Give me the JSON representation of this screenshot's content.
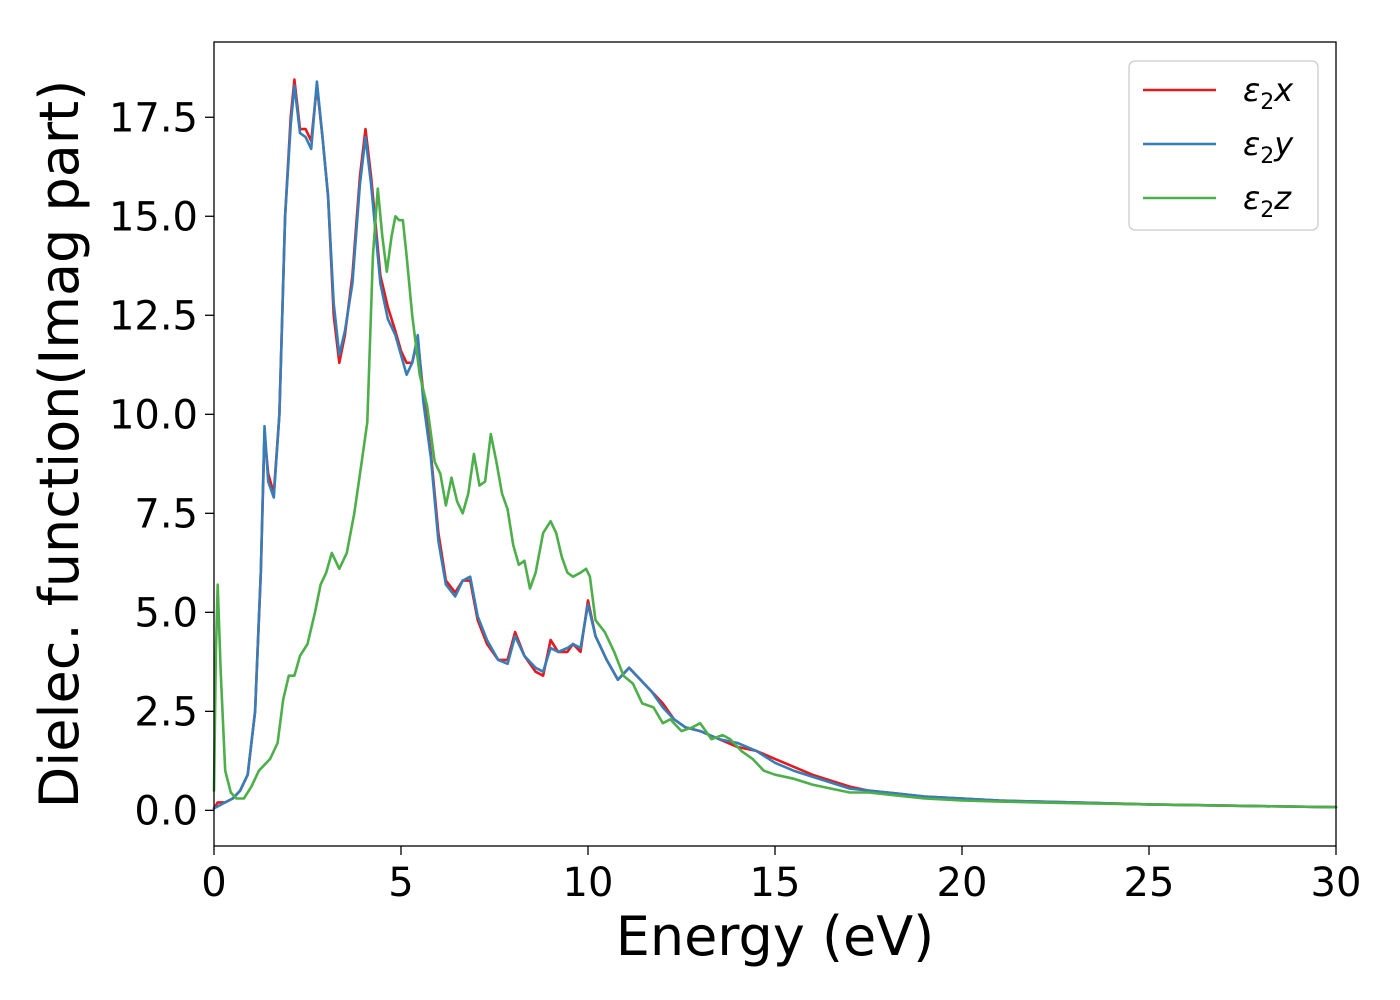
{
  "chart_data": {
    "type": "line",
    "title": "",
    "xlabel": "Energy (eV)",
    "ylabel": "Dielec. function(Imag part)",
    "xlim": [
      0,
      30
    ],
    "ylim": [
      -0.9,
      19.4
    ],
    "grid": false,
    "legend_position": "top-right",
    "xticks": [
      0,
      5,
      10,
      15,
      20,
      25,
      30
    ],
    "xtick_labels": [
      "0",
      "5",
      "10",
      "15",
      "20",
      "25",
      "30"
    ],
    "yticks": [
      0.0,
      2.5,
      5.0,
      7.5,
      10.0,
      12.5,
      15.0,
      17.5
    ],
    "ytick_labels": [
      "0.0",
      "2.5",
      "5.0",
      "7.5",
      "10.0",
      "12.5",
      "15.0",
      "17.5"
    ],
    "series": [
      {
        "name": "ε₂x",
        "legend_base": "ε",
        "legend_sub": "2",
        "legend_var": "x",
        "color": "#e41a1c",
        "points": [
          [
            0,
            0.05
          ],
          [
            0.1,
            0.2
          ],
          [
            0.3,
            0.2
          ],
          [
            0.5,
            0.3
          ],
          [
            0.7,
            0.5
          ],
          [
            0.9,
            0.9
          ],
          [
            1.1,
            2.5
          ],
          [
            1.25,
            6
          ],
          [
            1.35,
            9.5
          ],
          [
            1.45,
            8.5
          ],
          [
            1.6,
            8.0
          ],
          [
            1.75,
            10
          ],
          [
            1.9,
            15
          ],
          [
            2.05,
            17.5
          ],
          [
            2.15,
            18.45
          ],
          [
            2.3,
            17.2
          ],
          [
            2.45,
            17.2
          ],
          [
            2.6,
            16.9
          ],
          [
            2.75,
            18.3
          ],
          [
            2.9,
            17
          ],
          [
            3.05,
            15.5
          ],
          [
            3.2,
            12.5
          ],
          [
            3.35,
            11.3
          ],
          [
            3.5,
            12
          ],
          [
            3.7,
            13.5
          ],
          [
            3.9,
            16
          ],
          [
            4.05,
            17.2
          ],
          [
            4.2,
            16
          ],
          [
            4.45,
            13.5
          ],
          [
            4.65,
            12.7
          ],
          [
            4.85,
            12.1
          ],
          [
            5.0,
            11.6
          ],
          [
            5.15,
            11.3
          ],
          [
            5.3,
            11.3
          ],
          [
            5.45,
            11.9
          ],
          [
            5.6,
            10.5
          ],
          [
            5.8,
            9.0
          ],
          [
            6.0,
            7.0
          ],
          [
            6.2,
            5.8
          ],
          [
            6.45,
            5.5
          ],
          [
            6.65,
            5.8
          ],
          [
            6.85,
            5.8
          ],
          [
            7.05,
            4.8
          ],
          [
            7.3,
            4.2
          ],
          [
            7.6,
            3.8
          ],
          [
            7.85,
            3.8
          ],
          [
            8.05,
            4.5
          ],
          [
            8.3,
            3.9
          ],
          [
            8.6,
            3.5
          ],
          [
            8.8,
            3.4
          ],
          [
            9.0,
            4.3
          ],
          [
            9.2,
            4.0
          ],
          [
            9.45,
            4.0
          ],
          [
            9.6,
            4.2
          ],
          [
            9.8,
            4.0
          ],
          [
            10.0,
            5.3
          ],
          [
            10.2,
            4.4
          ],
          [
            10.5,
            3.8
          ],
          [
            10.8,
            3.3
          ],
          [
            11.1,
            3.6
          ],
          [
            11.4,
            3.3
          ],
          [
            11.7,
            3.0
          ],
          [
            12.0,
            2.7
          ],
          [
            12.3,
            2.3
          ],
          [
            12.6,
            2.1
          ],
          [
            13.0,
            2.0
          ],
          [
            13.5,
            1.8
          ],
          [
            14.0,
            1.6
          ],
          [
            14.5,
            1.5
          ],
          [
            15.0,
            1.3
          ],
          [
            15.5,
            1.1
          ],
          [
            16.0,
            0.9
          ],
          [
            16.5,
            0.75
          ],
          [
            17.0,
            0.6
          ],
          [
            17.5,
            0.5
          ],
          [
            18.0,
            0.45
          ],
          [
            19.0,
            0.35
          ],
          [
            20.0,
            0.3
          ],
          [
            21.0,
            0.25
          ],
          [
            22.0,
            0.22
          ],
          [
            23.0,
            0.2
          ],
          [
            25.0,
            0.15
          ],
          [
            27.0,
            0.12
          ],
          [
            30.0,
            0.08
          ]
        ]
      },
      {
        "name": "ε₂y",
        "legend_base": "ε",
        "legend_sub": "2",
        "legend_var": "y",
        "color": "#377eb8",
        "points": [
          [
            0,
            0.05
          ],
          [
            0.1,
            0.1
          ],
          [
            0.3,
            0.2
          ],
          [
            0.5,
            0.3
          ],
          [
            0.7,
            0.5
          ],
          [
            0.9,
            0.9
          ],
          [
            1.1,
            2.5
          ],
          [
            1.25,
            6
          ],
          [
            1.35,
            9.7
          ],
          [
            1.45,
            8.3
          ],
          [
            1.6,
            7.9
          ],
          [
            1.75,
            10
          ],
          [
            1.9,
            15
          ],
          [
            2.05,
            17.3
          ],
          [
            2.15,
            18.3
          ],
          [
            2.3,
            17.1
          ],
          [
            2.45,
            17.0
          ],
          [
            2.6,
            16.7
          ],
          [
            2.75,
            18.4
          ],
          [
            2.9,
            17
          ],
          [
            3.05,
            15.5
          ],
          [
            3.2,
            12.8
          ],
          [
            3.35,
            11.5
          ],
          [
            3.5,
            12.1
          ],
          [
            3.7,
            13.3
          ],
          [
            3.9,
            15.8
          ],
          [
            4.05,
            17.0
          ],
          [
            4.2,
            15.8
          ],
          [
            4.45,
            13.3
          ],
          [
            4.65,
            12.4
          ],
          [
            4.85,
            12.0
          ],
          [
            5.0,
            11.5
          ],
          [
            5.15,
            11.0
          ],
          [
            5.3,
            11.3
          ],
          [
            5.45,
            12.0
          ],
          [
            5.6,
            10.3
          ],
          [
            5.8,
            8.9
          ],
          [
            6.0,
            6.8
          ],
          [
            6.2,
            5.7
          ],
          [
            6.45,
            5.4
          ],
          [
            6.65,
            5.8
          ],
          [
            6.85,
            5.9
          ],
          [
            7.05,
            4.9
          ],
          [
            7.3,
            4.3
          ],
          [
            7.6,
            3.8
          ],
          [
            7.85,
            3.7
          ],
          [
            8.05,
            4.4
          ],
          [
            8.3,
            3.9
          ],
          [
            8.6,
            3.6
          ],
          [
            8.8,
            3.5
          ],
          [
            9.0,
            4.1
          ],
          [
            9.2,
            4.0
          ],
          [
            9.45,
            4.1
          ],
          [
            9.6,
            4.2
          ],
          [
            9.8,
            4.1
          ],
          [
            10.0,
            5.2
          ],
          [
            10.2,
            4.4
          ],
          [
            10.5,
            3.8
          ],
          [
            10.8,
            3.3
          ],
          [
            11.1,
            3.6
          ],
          [
            11.4,
            3.3
          ],
          [
            11.7,
            3.0
          ],
          [
            12.0,
            2.6
          ],
          [
            12.3,
            2.3
          ],
          [
            12.6,
            2.1
          ],
          [
            13.0,
            2.0
          ],
          [
            13.5,
            1.8
          ],
          [
            14.0,
            1.7
          ],
          [
            14.5,
            1.5
          ],
          [
            15.0,
            1.2
          ],
          [
            15.5,
            1.0
          ],
          [
            16.0,
            0.85
          ],
          [
            16.5,
            0.7
          ],
          [
            17.0,
            0.55
          ],
          [
            17.5,
            0.5
          ],
          [
            18.0,
            0.45
          ],
          [
            19.0,
            0.35
          ],
          [
            20.0,
            0.3
          ],
          [
            21.0,
            0.25
          ],
          [
            22.0,
            0.22
          ],
          [
            23.0,
            0.2
          ],
          [
            25.0,
            0.15
          ],
          [
            27.0,
            0.12
          ],
          [
            30.0,
            0.08
          ]
        ]
      },
      {
        "name": "ε₂z",
        "legend_base": "ε",
        "legend_sub": "2",
        "legend_var": "z",
        "color": "#4daf4a",
        "points": [
          [
            0,
            0.5
          ],
          [
            0.05,
            4.0
          ],
          [
            0.1,
            5.7
          ],
          [
            0.18,
            3.5
          ],
          [
            0.3,
            1.0
          ],
          [
            0.45,
            0.45
          ],
          [
            0.6,
            0.3
          ],
          [
            0.8,
            0.3
          ],
          [
            1.0,
            0.6
          ],
          [
            1.2,
            1.0
          ],
          [
            1.5,
            1.3
          ],
          [
            1.7,
            1.7
          ],
          [
            1.85,
            2.8
          ],
          [
            2.0,
            3.4
          ],
          [
            2.15,
            3.4
          ],
          [
            2.3,
            3.9
          ],
          [
            2.5,
            4.2
          ],
          [
            2.7,
            5.0
          ],
          [
            2.85,
            5.7
          ],
          [
            3.0,
            6.0
          ],
          [
            3.15,
            6.5
          ],
          [
            3.35,
            6.1
          ],
          [
            3.55,
            6.5
          ],
          [
            3.75,
            7.5
          ],
          [
            3.95,
            8.8
          ],
          [
            4.1,
            9.8
          ],
          [
            4.25,
            14.0
          ],
          [
            4.38,
            15.7
          ],
          [
            4.5,
            14.5
          ],
          [
            4.62,
            13.6
          ],
          [
            4.75,
            14.5
          ],
          [
            4.85,
            15.0
          ],
          [
            4.95,
            14.9
          ],
          [
            5.05,
            14.9
          ],
          [
            5.15,
            14.0
          ],
          [
            5.3,
            12.5
          ],
          [
            5.5,
            11.0
          ],
          [
            5.7,
            10.2
          ],
          [
            5.9,
            8.8
          ],
          [
            6.05,
            8.5
          ],
          [
            6.2,
            7.7
          ],
          [
            6.35,
            8.4
          ],
          [
            6.5,
            7.8
          ],
          [
            6.65,
            7.5
          ],
          [
            6.8,
            8.0
          ],
          [
            6.95,
            9.0
          ],
          [
            7.1,
            8.2
          ],
          [
            7.25,
            8.3
          ],
          [
            7.4,
            9.5
          ],
          [
            7.55,
            8.8
          ],
          [
            7.7,
            8.0
          ],
          [
            7.85,
            7.6
          ],
          [
            8.0,
            6.7
          ],
          [
            8.15,
            6.2
          ],
          [
            8.3,
            6.3
          ],
          [
            8.45,
            5.6
          ],
          [
            8.6,
            6.0
          ],
          [
            8.8,
            7.0
          ],
          [
            9.0,
            7.3
          ],
          [
            9.15,
            7.0
          ],
          [
            9.3,
            6.4
          ],
          [
            9.45,
            6.0
          ],
          [
            9.6,
            5.9
          ],
          [
            9.8,
            6.0
          ],
          [
            9.95,
            6.1
          ],
          [
            10.05,
            5.9
          ],
          [
            10.2,
            4.8
          ],
          [
            10.45,
            4.5
          ],
          [
            10.7,
            4.0
          ],
          [
            10.95,
            3.4
          ],
          [
            11.2,
            3.2
          ],
          [
            11.45,
            2.7
          ],
          [
            11.75,
            2.6
          ],
          [
            12.0,
            2.2
          ],
          [
            12.2,
            2.3
          ],
          [
            12.5,
            2.0
          ],
          [
            12.8,
            2.1
          ],
          [
            13.0,
            2.2
          ],
          [
            13.3,
            1.8
          ],
          [
            13.6,
            1.9
          ],
          [
            13.8,
            1.8
          ],
          [
            14.1,
            1.5
          ],
          [
            14.4,
            1.3
          ],
          [
            14.7,
            1.0
          ],
          [
            15.0,
            0.9
          ],
          [
            15.5,
            0.8
          ],
          [
            16.0,
            0.65
          ],
          [
            16.5,
            0.55
          ],
          [
            17.0,
            0.45
          ],
          [
            17.5,
            0.45
          ],
          [
            18.0,
            0.4
          ],
          [
            19.0,
            0.3
          ],
          [
            20.0,
            0.25
          ],
          [
            21.0,
            0.22
          ],
          [
            22.0,
            0.2
          ],
          [
            23.0,
            0.18
          ],
          [
            25.0,
            0.15
          ],
          [
            27.0,
            0.12
          ],
          [
            30.0,
            0.08
          ]
        ]
      }
    ]
  }
}
